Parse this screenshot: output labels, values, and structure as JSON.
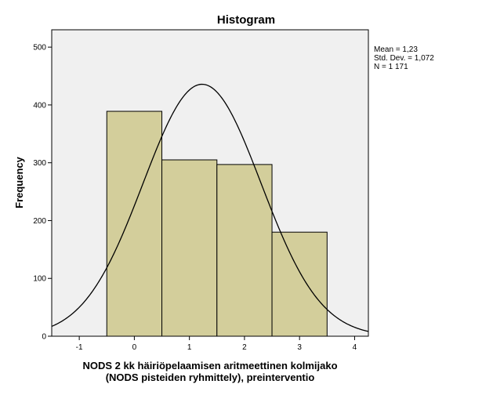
{
  "chart_data": {
    "type": "bar",
    "title": "Histogram",
    "ylabel": "Frequency",
    "xlabel_lines": [
      "NODS 2 kk häiriöpelaamisen aritmeettinen kolmijako",
      "(NODS pisteiden ryhmittely), preinterventio"
    ],
    "bins": [
      {
        "center": 0,
        "value": 389
      },
      {
        "center": 1,
        "value": 305
      },
      {
        "center": 2,
        "value": 297
      },
      {
        "center": 3,
        "value": 180
      }
    ],
    "bin_width": 1,
    "xlim": [
      -1.5,
      4.25
    ],
    "ylim": [
      0,
      530
    ],
    "x_ticks": [
      -1,
      0,
      1,
      2,
      3,
      4
    ],
    "x_tick_labels": [
      "-1",
      "0",
      "1",
      "2",
      "3",
      "4"
    ],
    "y_ticks": [
      0,
      100,
      200,
      300,
      400,
      500
    ],
    "y_tick_labels": [
      "0",
      "100",
      "200",
      "300",
      "400",
      "500"
    ],
    "normal_curve": {
      "mean": 1.23,
      "std_dev": 1.072,
      "n": 1171
    },
    "stats_lines": [
      "Mean = 1,23",
      "Std. Dev. = 1,072",
      "N = 1 171"
    ],
    "colors": {
      "bar_fill": "#d3ce9b",
      "bar_stroke": "#000000",
      "plot_background": "#f0f0f0",
      "curve": "#000000"
    },
    "grid": false,
    "legend_placement": "right"
  }
}
